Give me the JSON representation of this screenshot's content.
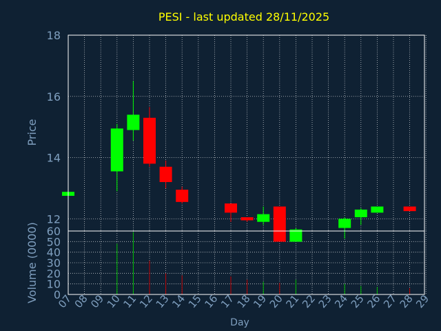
{
  "chart_data": {
    "type": "candlestick",
    "title": "PESI - last updated 28/11/2025",
    "xlabel": "Day",
    "x_ticks": [
      "07",
      "08",
      "09",
      "10",
      "11",
      "12",
      "13",
      "14",
      "15",
      "16",
      "17",
      "18",
      "19",
      "20",
      "21",
      "22",
      "23",
      "24",
      "25",
      "26",
      "27",
      "28",
      "29"
    ],
    "price_panel": {
      "ylabel": "Price",
      "ylim": [
        11.6,
        18
      ],
      "y_ticks": [
        "12",
        "14",
        "16",
        "18"
      ],
      "grid": true
    },
    "volume_panel": {
      "ylabel": "Volume (0000)",
      "ylim": [
        0,
        60
      ],
      "y_ticks": [
        "0",
        "10",
        "20",
        "30",
        "40",
        "50",
        "60"
      ],
      "grid": true
    },
    "candles": [
      {
        "day": 7,
        "open": 12.75,
        "close": 12.88,
        "high": 12.88,
        "low": 12.75,
        "volume": 0
      },
      {
        "day": 10,
        "open": 13.55,
        "close": 14.95,
        "high": 15.1,
        "low": 12.9,
        "volume": 48
      },
      {
        "day": 11,
        "open": 14.9,
        "close": 15.4,
        "high": 16.5,
        "low": 14.55,
        "volume": 59
      },
      {
        "day": 12,
        "open": 15.3,
        "close": 13.8,
        "high": 15.65,
        "low": 13.7,
        "volume": 32
      },
      {
        "day": 13,
        "open": 13.7,
        "close": 13.2,
        "high": 13.9,
        "low": 13.0,
        "volume": 20
      },
      {
        "day": 14,
        "open": 12.95,
        "close": 12.55,
        "high": 13.05,
        "low": 12.5,
        "volume": 18
      },
      {
        "day": 17,
        "open": 12.5,
        "close": 12.2,
        "high": 12.5,
        "low": 11.9,
        "volume": 17
      },
      {
        "day": 18,
        "open": 12.05,
        "close": 11.95,
        "high": 12.05,
        "low": 11.9,
        "volume": 14
      },
      {
        "day": 19,
        "open": 11.9,
        "close": 12.15,
        "high": 12.4,
        "low": 11.8,
        "volume": 12
      },
      {
        "day": 20,
        "open": 12.4,
        "close": 11.25,
        "high": 12.4,
        "low": 11.25,
        "volume": 11
      },
      {
        "day": 21,
        "open": 11.25,
        "close": 11.65,
        "high": 11.7,
        "low": 11.25,
        "volume": 14
      },
      {
        "day": 24,
        "open": 11.7,
        "close": 12.0,
        "high": 12.05,
        "low": 11.35,
        "volume": 10
      },
      {
        "day": 25,
        "open": 12.05,
        "close": 12.3,
        "high": 12.35,
        "low": 11.8,
        "volume": 8
      },
      {
        "day": 26,
        "open": 12.2,
        "close": 12.4,
        "high": 12.4,
        "low": 12.2,
        "volume": 7
      },
      {
        "day": 28,
        "open": 12.4,
        "close": 12.25,
        "high": 12.4,
        "low": 12.25,
        "volume": 6
      }
    ],
    "colors": {
      "background": "#0f2133",
      "up": "#00ff00",
      "down": "#ff0000",
      "title": "#ffff00",
      "axis_text": "#7f9fbf",
      "grid": "#ffffff",
      "frame": "#ffffff",
      "volume_up": "#00c000",
      "volume_down": "#c00000"
    }
  }
}
